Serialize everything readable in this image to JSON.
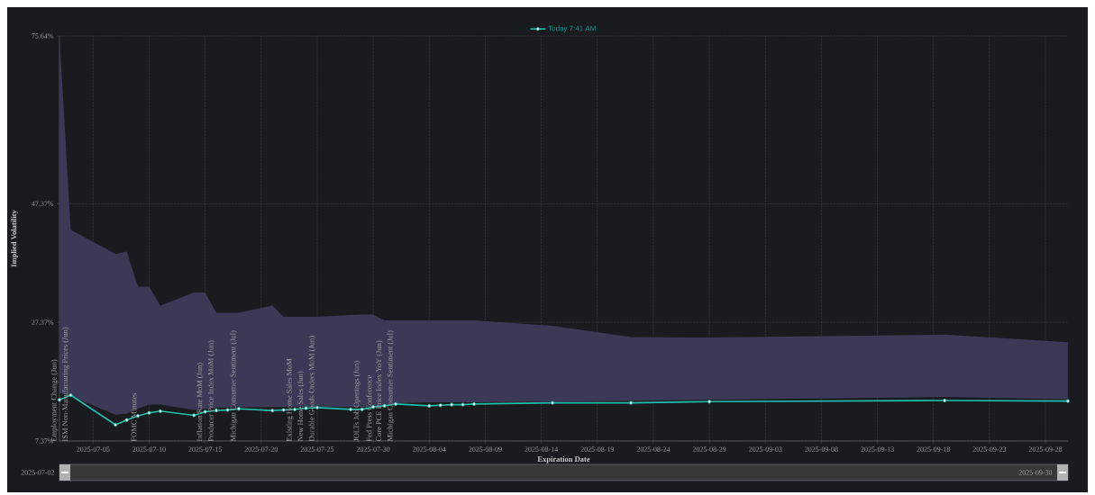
{
  "chart_data": {
    "type": "line",
    "xlabel": "Expiration Date",
    "ylabel": "Implied Volatility",
    "xlim": [
      "2025-07-02",
      "2025-09-30"
    ],
    "xticks": [
      "2025-07-05",
      "2025-07-10",
      "2025-07-15",
      "2025-07-20",
      "2025-07-25",
      "2025-07-30",
      "2025-08-04",
      "2025-08-09",
      "2025-08-14",
      "2025-08-19",
      "2025-08-24",
      "2025-08-29",
      "2025-09-03",
      "2025-09-08",
      "2025-09-13",
      "2025-09-18",
      "2025-09-23",
      "2025-09-28"
    ],
    "ylim": [
      7.37,
      75.64
    ],
    "yticks": [
      {
        "value": 7.37,
        "label": "7.37%"
      },
      {
        "value": 27.37,
        "label": "27.37%"
      },
      {
        "value": 47.37,
        "label": "47.37%"
      },
      {
        "value": 75.64,
        "label": "75.64%"
      }
    ],
    "grid": true,
    "legend": "top",
    "marker": "circle",
    "line_style": "solid",
    "series": [
      {
        "name": "Today 7:41 AM",
        "color": "#1fbfae",
        "x": [
          "2025-07-02",
          "2025-07-03",
          "2025-07-07",
          "2025-07-08",
          "2025-07-09",
          "2025-07-10",
          "2025-07-11",
          "2025-07-14",
          "2025-07-15",
          "2025-07-16",
          "2025-07-17",
          "2025-07-18",
          "2025-07-21",
          "2025-07-22",
          "2025-07-23",
          "2025-07-24",
          "2025-07-25",
          "2025-07-28",
          "2025-07-29",
          "2025-07-30",
          "2025-07-31",
          "2025-08-01",
          "2025-08-04",
          "2025-08-05",
          "2025-08-06",
          "2025-08-07",
          "2025-08-08",
          "2025-08-15",
          "2025-08-22",
          "2025-08-29",
          "2025-09-19",
          "2025-09-30"
        ],
        "values": [
          14.3,
          15.1,
          10.1,
          10.9,
          11.6,
          12.1,
          12.4,
          11.7,
          12.3,
          12.5,
          12.6,
          12.8,
          12.5,
          12.6,
          12.7,
          12.9,
          13.0,
          12.7,
          12.7,
          13.1,
          13.3,
          13.6,
          13.3,
          13.4,
          13.5,
          13.5,
          13.6,
          13.8,
          13.8,
          14.0,
          14.2,
          14.1
        ],
        "value_labels": [
          "Employment Change (Jun)",
          "ISM Non-Manufacturing Prices (Jun)",
          null,
          null,
          "FOMC Minutes",
          null,
          null,
          null,
          "Inflation Rate MoM (Jun)",
          "Producer Price Index MoM (Jun)",
          null,
          "Michigan Consumer Sentiment (Jul)",
          null,
          null,
          "Existing Home Sales MoM",
          "New Home Sales (Jun)",
          "Durable Goods Orders MoM (Jun)",
          null,
          "JOLTs Job Openings (Jun)",
          "Fed Press Conference",
          "Core PCE Price Index YoY (Jun)",
          "Michigan Consumer Sentiment (Jul)",
          null,
          null,
          null,
          null,
          null,
          null,
          null,
          null,
          null,
          null
        ],
        "lower": [
          15.5,
          14.9,
          11.8,
          12.0,
          12.8,
          13.5,
          13.5,
          12.6,
          12.8,
          12.9,
          13.0,
          13.0,
          13.1,
          13.1,
          13.1,
          13.1,
          13.1,
          13.1,
          13.1,
          13.1,
          13.4,
          13.7,
          13.9,
          13.9,
          13.9,
          13.9,
          13.9,
          14.0,
          14.1,
          14.3,
          14.8,
          14.4
        ],
        "upper": [
          75.64,
          43.0,
          38.9,
          39.3,
          33.4,
          33.4,
          30.2,
          32.4,
          32.4,
          29.0,
          29.0,
          29.0,
          30.2,
          28.3,
          28.3,
          28.3,
          28.3,
          28.6,
          28.7,
          28.7,
          27.7,
          27.7,
          27.7,
          27.7,
          27.7,
          27.7,
          27.7,
          26.8,
          24.9,
          24.8,
          25.3,
          24.0
        ]
      }
    ],
    "annotations": [
      "2025-07-02",
      "2025-09-30"
    ]
  }
}
